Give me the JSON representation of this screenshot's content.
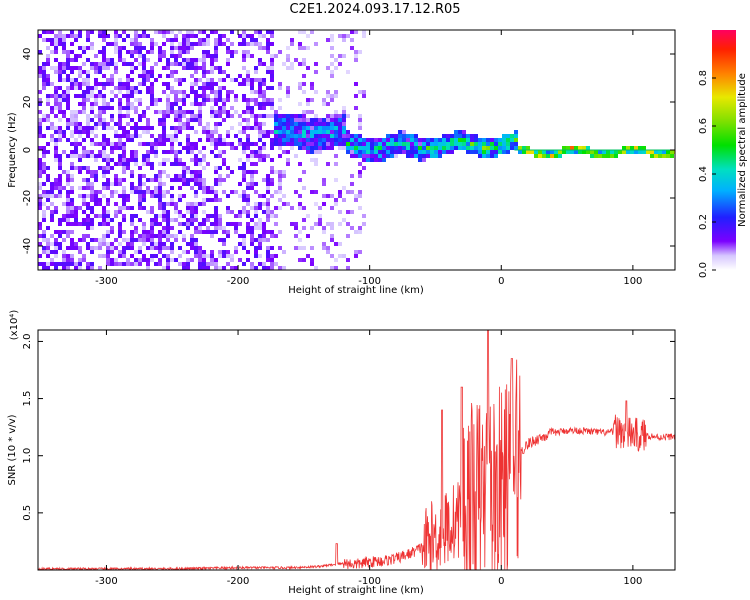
{
  "title": "C2E1.2024.093.17.12.R05",
  "colors": {
    "snr_line": "#ee3333",
    "spectrum_low": "#7b00ff",
    "spectrum_mid": "#00dd00",
    "spectrum_high": "#ff0040"
  },
  "chart_data": [
    {
      "type": "heatmap",
      "name": "spectrum",
      "xlabel": "Height of straight line (km)",
      "ylabel": "Frequency (Hz)",
      "xlim": [
        -352,
        132
      ],
      "ylim": [
        -50,
        50
      ],
      "xticks": [
        -300,
        -200,
        -100,
        0,
        100
      ],
      "xtick_labels": [
        "-300",
        "-200",
        "-100",
        "0",
        "100"
      ],
      "yticks": [
        -40,
        -20,
        0,
        20,
        40
      ],
      "ytick_labels": [
        "-40",
        "-20",
        "0",
        "20",
        "40"
      ],
      "colorbar": {
        "label": "Normalized spectral amplitude",
        "range": [
          0,
          1
        ],
        "ticks": [
          0.0,
          0.2,
          0.4,
          0.6,
          0.8
        ],
        "tick_labels": [
          "0.0",
          "0.2",
          "0.4",
          "0.6",
          "0.8"
        ]
      },
      "regions": [
        {
          "x_range": [
            -352,
            -175
          ],
          "description": "broadband noise",
          "amplitude_range": [
            0.0,
            0.15
          ]
        },
        {
          "x_range": [
            -175,
            -120
          ],
          "freq_center": 8,
          "freq_width": 14,
          "amplitude_range": [
            0.1,
            0.45
          ]
        },
        {
          "x_range": [
            -120,
            -60
          ],
          "freq_center": 2,
          "freq_width": 10,
          "amplitude_range": [
            0.1,
            0.55
          ]
        },
        {
          "x_range": [
            -60,
            10
          ],
          "freq_center": 3,
          "freq_width": 8,
          "amplitude_range": [
            0.2,
            0.65
          ]
        },
        {
          "x_range": [
            10,
            132
          ],
          "freq_center": 0,
          "freq_width": 3,
          "amplitude_range": [
            0.5,
            0.95
          ]
        }
      ]
    },
    {
      "type": "line",
      "name": "snr",
      "xlabel": "Height of straight line (km)",
      "ylabel": "SNR (10 * v/v)",
      "y_multiplier_label": "(x10⁴)",
      "xlim": [
        -352,
        132
      ],
      "ylim": [
        0,
        2.1
      ],
      "xticks": [
        -300,
        -200,
        -100,
        0,
        100
      ],
      "xtick_labels": [
        "-300",
        "-200",
        "-100",
        "0",
        "100"
      ],
      "yticks": [
        0.5,
        1.0,
        1.5,
        2.0
      ],
      "ytick_labels": [
        "0.5",
        "1.0",
        "1.5",
        "2.0"
      ],
      "x": [
        -352,
        -300,
        -250,
        -200,
        -160,
        -140,
        -125,
        -120,
        -110,
        -100,
        -90,
        -80,
        -70,
        -60,
        -50,
        -40,
        -30,
        -25,
        -20,
        -15,
        -10,
        -5,
        0,
        5,
        10,
        15,
        20,
        30,
        40,
        50,
        60,
        70,
        80,
        90,
        95,
        100,
        105,
        110,
        120,
        132
      ],
      "y": [
        0.01,
        0.01,
        0.01,
        0.02,
        0.02,
        0.03,
        0.05,
        0.06,
        0.05,
        0.07,
        0.08,
        0.1,
        0.14,
        0.2,
        0.28,
        0.38,
        0.48,
        0.55,
        0.6,
        0.65,
        0.7,
        0.68,
        0.72,
        0.8,
        0.92,
        1.04,
        1.1,
        1.16,
        1.2,
        1.22,
        1.22,
        1.21,
        1.2,
        1.22,
        1.18,
        1.2,
        1.17,
        1.18,
        1.16,
        1.17
      ],
      "noise_envelope": [
        {
          "x_range": [
            -352,
            -120
          ],
          "amp": 0.01
        },
        {
          "x_range": [
            -120,
            -60
          ],
          "amp": 0.05
        },
        {
          "x_range": [
            -60,
            -30
          ],
          "amp": 0.35
        },
        {
          "x_range": [
            -30,
            15
          ],
          "amp": 0.9
        },
        {
          "x_range": [
            15,
            40
          ],
          "amp": 0.05
        },
        {
          "x_range": [
            40,
            85
          ],
          "amp": 0.03
        },
        {
          "x_range": [
            85,
            110
          ],
          "amp": 0.15
        },
        {
          "x_range": [
            110,
            132
          ],
          "amp": 0.03
        }
      ],
      "peaks": [
        {
          "x": -125,
          "y": 0.23
        },
        {
          "x": -45,
          "y": 1.4
        },
        {
          "x": -30,
          "y": 1.6
        },
        {
          "x": -10,
          "y": 2.1
        },
        {
          "x": 8,
          "y": 1.85
        },
        {
          "x": 95,
          "y": 1.48
        }
      ]
    }
  ]
}
